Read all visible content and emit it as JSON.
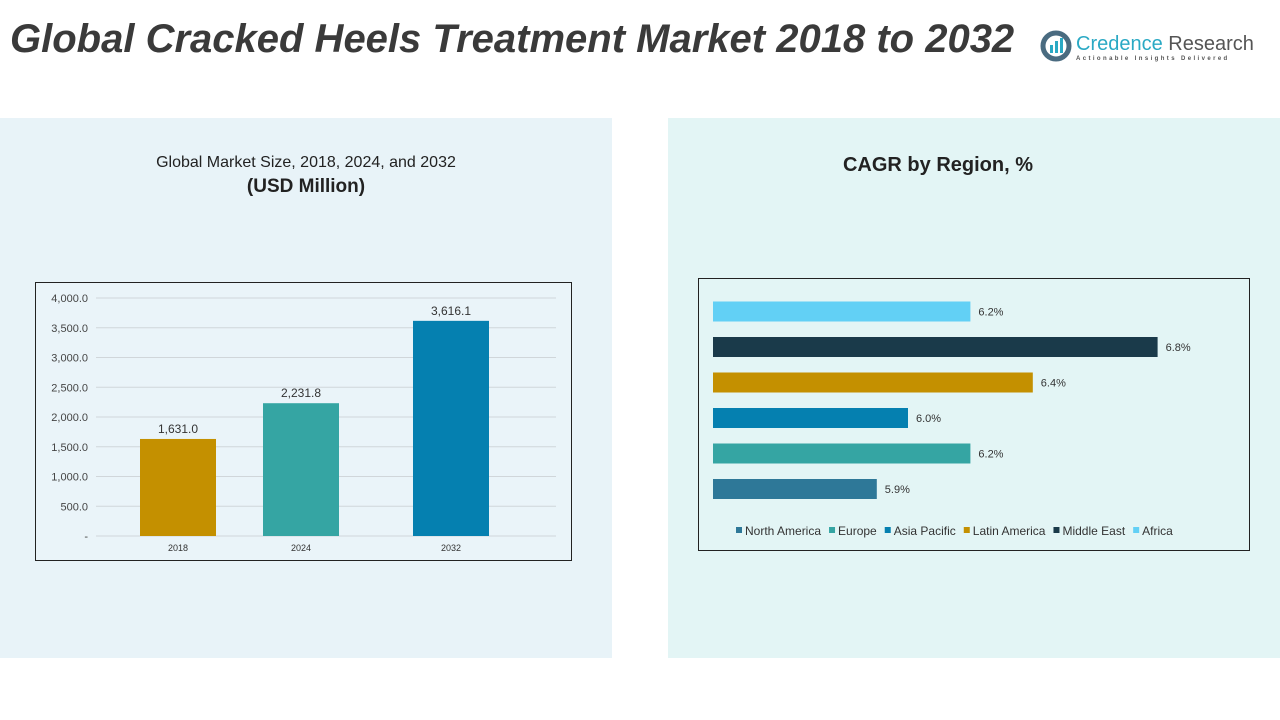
{
  "title": "Global Cracked Heels Treatment Market 2018 to 2032",
  "logo": {
    "name_part1": "Credence",
    "name_part2": "Research",
    "tagline": "Actionable Insights Delivered"
  },
  "chart_data": [
    {
      "type": "bar",
      "title": "Global Market Size, 2018, 2024, and 2032",
      "subtitle": "(USD Million)",
      "categories": [
        "2018",
        "2024",
        "2032"
      ],
      "values": [
        1631.0,
        2231.8,
        3616.1
      ],
      "labels": [
        "1,631.0",
        "2,231.8",
        "3,616.1"
      ],
      "colors": [
        "#c49000",
        "#35a5a3",
        "#0580b0"
      ],
      "ylim": [
        0,
        4000
      ],
      "yticks": [
        "-",
        "500.0",
        "1,000.0",
        "1,500.0",
        "2,000.0",
        "2,500.0",
        "3,000.0",
        "3,500.0",
        "4,000.0"
      ],
      "grid": true
    },
    {
      "type": "bar",
      "orientation": "horizontal",
      "title": "CAGR by Region, %",
      "categories": [
        "North America",
        "Europe",
        "Asia Pacific",
        "Latin America",
        "Middle East",
        "Africa"
      ],
      "values": [
        5.9,
        6.2,
        6.0,
        6.4,
        6.8,
        6.2
      ],
      "labels": [
        "5.9%",
        "6.2%",
        "6.0%",
        "6.4%",
        "6.8%",
        "6.2%"
      ],
      "colors": [
        "#2e7898",
        "#35a5a3",
        "#0580b0",
        "#c49000",
        "#1a3a4a",
        "#62d0f5"
      ],
      "legend": "bottom"
    }
  ]
}
